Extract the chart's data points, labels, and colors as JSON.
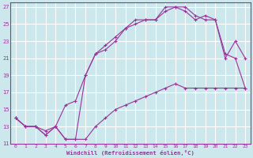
{
  "bg_color": "#cce8ec",
  "grid_color": "#ffffff",
  "line_color": "#993399",
  "spine_color": "#993399",
  "xlabel": "Windchill (Refroidissement éolien,°C)",
  "xlim": [
    -0.5,
    23.5
  ],
  "ylim": [
    11,
    27.5
  ],
  "yticks": [
    11,
    13,
    15,
    17,
    19,
    21,
    23,
    25,
    27
  ],
  "xticks": [
    0,
    1,
    2,
    3,
    4,
    5,
    6,
    7,
    8,
    9,
    10,
    11,
    12,
    13,
    14,
    15,
    16,
    17,
    18,
    19,
    20,
    21,
    22,
    23
  ],
  "line1_x": [
    0,
    1,
    2,
    3,
    4,
    5,
    6,
    7,
    8,
    9,
    10,
    11,
    12,
    13,
    14,
    15,
    16,
    17,
    18,
    19,
    20,
    21,
    22,
    23
  ],
  "line1_y": [
    14.0,
    13.0,
    13.0,
    12.5,
    13.0,
    11.5,
    11.5,
    11.5,
    13.0,
    14.0,
    15.0,
    15.5,
    16.0,
    16.5,
    17.0,
    17.5,
    18.0,
    17.5,
    17.5,
    17.5,
    17.5,
    17.5,
    17.5,
    17.5
  ],
  "line2_x": [
    0,
    1,
    2,
    3,
    4,
    5,
    6,
    7,
    8,
    9,
    10,
    11,
    12,
    13,
    14,
    15,
    16,
    17,
    18,
    19,
    20,
    21,
    22,
    23
  ],
  "line2_y": [
    14.0,
    13.0,
    13.0,
    12.0,
    13.0,
    11.5,
    11.5,
    19.0,
    21.5,
    22.0,
    23.0,
    24.5,
    25.0,
    25.5,
    25.5,
    27.0,
    27.0,
    26.5,
    25.5,
    26.0,
    25.5,
    21.0,
    23.0,
    21.0
  ],
  "line3_x": [
    0,
    1,
    2,
    3,
    4,
    5,
    6,
    7,
    8,
    9,
    10,
    11,
    12,
    13,
    14,
    15,
    16,
    17,
    18,
    19,
    20,
    21,
    22,
    23
  ],
  "line3_y": [
    14.0,
    13.0,
    13.0,
    12.0,
    13.0,
    15.5,
    16.0,
    19.0,
    21.5,
    22.5,
    23.5,
    24.5,
    25.5,
    25.5,
    25.5,
    26.5,
    27.0,
    27.0,
    26.0,
    25.5,
    25.5,
    21.5,
    21.0,
    17.5
  ]
}
